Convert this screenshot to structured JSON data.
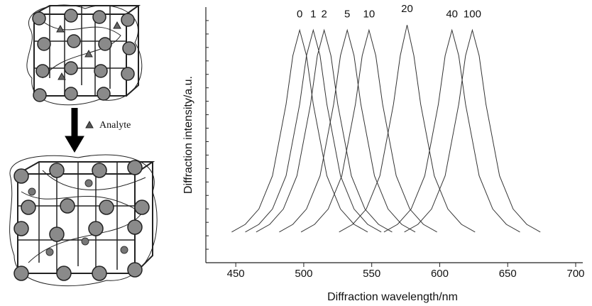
{
  "schematic": {
    "label": "Analyte"
  },
  "chart_data": {
    "type": "line",
    "xlabel": "Diffraction wavelength/nm",
    "ylabel": "Diffraction intensity/a.u.",
    "xlim": [
      428,
      700
    ],
    "xticks": [
      450,
      500,
      550,
      600,
      650,
      700
    ],
    "ylim": [
      0,
      1
    ],
    "series": [
      {
        "name": "0",
        "color": "#333333",
        "x": [
          447,
          457,
          467,
          477,
          487,
          492,
          497,
          502,
          507,
          517,
          527,
          537,
          547
        ],
        "values": [
          0.12,
          0.15,
          0.21,
          0.34,
          0.62,
          0.81,
          0.91,
          0.81,
          0.62,
          0.34,
          0.21,
          0.15,
          0.12
        ]
      },
      {
        "name": "1",
        "color": "#333333",
        "x": [
          457,
          467,
          477,
          487,
          497,
          502,
          507,
          512,
          517,
          527,
          537,
          547,
          557
        ],
        "values": [
          0.12,
          0.15,
          0.21,
          0.34,
          0.62,
          0.81,
          0.91,
          0.81,
          0.62,
          0.34,
          0.21,
          0.15,
          0.12
        ]
      },
      {
        "name": "2",
        "color": "#333333",
        "x": [
          465,
          475,
          485,
          495,
          505,
          510,
          515,
          520,
          525,
          535,
          545,
          555,
          565
        ],
        "values": [
          0.12,
          0.15,
          0.21,
          0.34,
          0.62,
          0.81,
          0.91,
          0.81,
          0.62,
          0.34,
          0.21,
          0.15,
          0.12
        ]
      },
      {
        "name": "5",
        "color": "#333333",
        "x": [
          482,
          492,
          502,
          512,
          522,
          527,
          532,
          537,
          542,
          552,
          562,
          572,
          582
        ],
        "values": [
          0.12,
          0.15,
          0.21,
          0.34,
          0.62,
          0.81,
          0.91,
          0.81,
          0.62,
          0.34,
          0.21,
          0.15,
          0.12
        ]
      },
      {
        "name": "10",
        "color": "#333333",
        "x": [
          498,
          508,
          518,
          528,
          538,
          543,
          548,
          553,
          558,
          568,
          578,
          588,
          598
        ],
        "values": [
          0.12,
          0.15,
          0.21,
          0.34,
          0.62,
          0.81,
          0.91,
          0.81,
          0.62,
          0.34,
          0.21,
          0.15,
          0.12
        ]
      },
      {
        "name": "20",
        "color": "#333333",
        "x": [
          526,
          536,
          546,
          556,
          566,
          571,
          576,
          581,
          586,
          596,
          606,
          616,
          626
        ],
        "values": [
          0.12,
          0.15,
          0.21,
          0.34,
          0.62,
          0.81,
          0.93,
          0.81,
          0.62,
          0.34,
          0.21,
          0.15,
          0.12
        ]
      },
      {
        "name": "40",
        "color": "#333333",
        "x": [
          559,
          569,
          579,
          589,
          599,
          604,
          609,
          614,
          619,
          629,
          639,
          649,
          659
        ],
        "values": [
          0.12,
          0.15,
          0.21,
          0.34,
          0.62,
          0.81,
          0.91,
          0.81,
          0.62,
          0.34,
          0.21,
          0.15,
          0.12
        ]
      },
      {
        "name": "100",
        "color": "#333333",
        "x": [
          574,
          584,
          594,
          604,
          614,
          619,
          624,
          629,
          634,
          644,
          654,
          664,
          674
        ],
        "values": [
          0.12,
          0.15,
          0.21,
          0.34,
          0.62,
          0.81,
          0.91,
          0.81,
          0.62,
          0.34,
          0.21,
          0.15,
          0.12
        ]
      }
    ]
  }
}
